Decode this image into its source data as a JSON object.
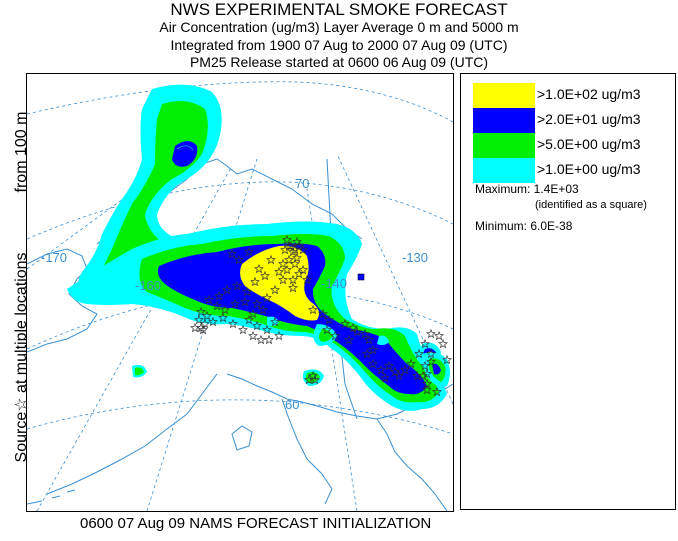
{
  "header": {
    "title": "NWS EXPERIMENTAL SMOKE FORECAST",
    "line2": "Air Concentration (ug/m3) Layer Average    0 m and  5000 m",
    "line3": "Integrated from 1900 07 Aug to 2000 07 Aug 09 (UTC)",
    "line4": "PM25 Release started at 0600 06 Aug 09 (UTC)"
  },
  "side_label": {
    "part1": "Source☆ at multiple locations",
    "part2": "from  100 m"
  },
  "map": {
    "lat_labels": [
      "70",
      "60"
    ],
    "lon_labels": [
      "-170",
      "-160",
      "-140",
      "-130"
    ],
    "contour_colors": {
      "level1": "#00ffff",
      "level2": "#00ee00",
      "level3": "#0000ff",
      "level4": "#ffff00"
    },
    "source_marker_icon": "star-outline-icon",
    "max_marker_icon": "square-icon"
  },
  "legend": {
    "items": [
      {
        "label": ">1.0E+02 ug/m3",
        "color": "#ffff00"
      },
      {
        "label": ">2.0E+01 ug/m3",
        "color": "#0000ff"
      },
      {
        "label": ">5.0E+00 ug/m3",
        "color": "#00ee00"
      },
      {
        "label": ">1.0E+00 ug/m3",
        "color": "#00ffff"
      }
    ],
    "maximum": "Maximum: 1.4E+03",
    "max_note": "(identified as a square)",
    "minimum": "Minimum: 6.0E-38"
  },
  "footer": "0600 07 Aug 09 NAMS FORECAST INITIALIZATION"
}
